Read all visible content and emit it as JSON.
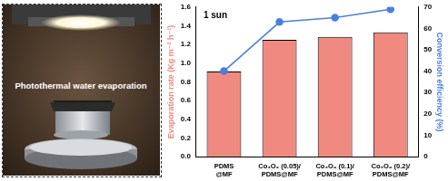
{
  "photo": {
    "label": "Photothermal water evaporation"
  },
  "chart_data": {
    "type": "bar",
    "annotation": "1 sun",
    "categories": [
      "PDMS@MF",
      "Co₃O₄ (0.05)/PDMS@MF",
      "Co₃O₄ (0.1)/PDMS@MF",
      "Co₃O₄ (0.2)/PDMS@MF"
    ],
    "y_label": "Evaporation rate (Kg m⁻² h⁻¹)",
    "y2_label": "Conversion efficiency (%)",
    "ylim": [
      0,
      1.6
    ],
    "yticks": [
      {
        "value": 0,
        "label": "0.0"
      },
      0.2,
      0.4,
      0.6,
      0.8,
      {
        "value": 1,
        "label": "1.0"
      },
      1.2,
      1.4,
      1.6
    ],
    "y2lim": [
      0,
      70
    ],
    "y2ticks": [
      0,
      10,
      20,
      30,
      40,
      50,
      60,
      70
    ],
    "grid": false,
    "series": [
      {
        "type": "bar",
        "color": "#f08a80",
        "values": [
          0.91,
          1.25,
          1.28,
          1.33
        ]
      },
      {
        "type": "line",
        "axis": "y2",
        "color": "#4a7fe0",
        "marker": "circle",
        "line_style": "solid",
        "values": [
          40,
          63,
          65,
          69
        ]
      }
    ]
  }
}
